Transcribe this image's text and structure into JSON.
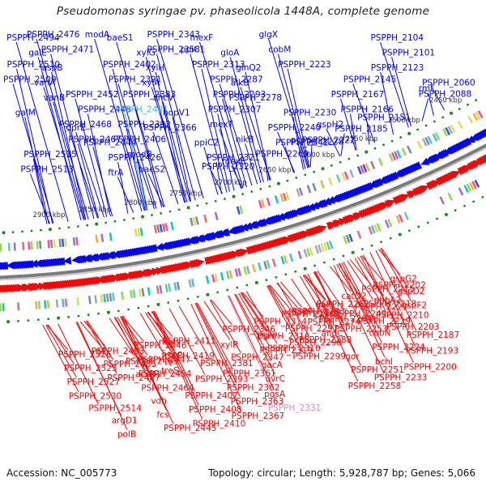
{
  "title": "Pseudomonas syringae pv. phaseolicola 1448A, complete genome",
  "footer": {
    "accession": "Accession: NC_005773",
    "stats": "Topology: circular; Length: 5,928,787 bp; Genes: 5,066"
  },
  "colors": {
    "forward_strand": "#0000ff",
    "reverse_strand": "#ff0000",
    "backbone": "#808080",
    "highlight_forward": "#33bbee",
    "highlight_reverse": "#ee88cc",
    "tick": "#1a8a1a"
  },
  "scale": {
    "unit": "kbp",
    "ticks_kbp": [
      2450,
      2500,
      2550,
      2600,
      2650,
      2700,
      2750,
      2800,
      2850,
      2900
    ]
  },
  "forward_labels": [
    {
      "text": "PSPPH_2476",
      "kbp": 2858
    },
    {
      "text": "PSPPH_2471",
      "kbp": 2852
    },
    {
      "text": "PSPPH_2510",
      "kbp": 2897
    },
    {
      "text": "PSPPH_2509",
      "kbp": 2896
    },
    {
      "text": "PSPPH_2452",
      "kbp": 2838
    },
    {
      "text": "PSPPH_2448",
      "kbp": 2834
    },
    {
      "text": "PSPPH_2468",
      "kbp": 2848
    },
    {
      "text": "PSPPH_2467",
      "kbp": 2847
    },
    {
      "text": "PSPPH_2515",
      "kbp": 2903
    },
    {
      "text": "PSPPH_2513",
      "kbp": 2900
    },
    {
      "text": "PSPPH_2494",
      "kbp": 2880
    },
    {
      "text": "galE",
      "kbp": 2866
    },
    {
      "text": "aspB",
      "kbp": 2861
    },
    {
      "text": "vanA",
      "kbp": 2863
    },
    {
      "text": "vanB",
      "kbp": 2862
    },
    {
      "text": "galM",
      "kbp": 2901
    },
    {
      "text": "oprE",
      "kbp": 2841
    },
    {
      "text": "PSPPH_2444",
      "kbp": 2832
    },
    {
      "text": "PSPPH_2426",
      "kbp": 2815
    },
    {
      "text": "ftrA",
      "kbp": 2809
    },
    {
      "text": "modA",
      "kbp": 2797
    },
    {
      "text": "PSPPH_2358",
      "kbp": 2741
    },
    {
      "text": "PSPPH_2402",
      "kbp": 2796
    },
    {
      "text": "PSPPH_2391",
      "kbp": 2784
    },
    {
      "text": "PSPPH_2383",
      "kbp": 2778
    },
    {
      "text": "PSPPH_2401",
      "kbp": 2795,
      "highlight": true
    },
    {
      "text": "PSPPH_2392",
      "kbp": 2786
    },
    {
      "text": "PSPPH_2406",
      "kbp": 2800
    },
    {
      "text": "modB",
      "kbp": 2794
    },
    {
      "text": "baeS2",
      "kbp": 2776
    },
    {
      "text": "baeS1",
      "kbp": 2775
    },
    {
      "text": "xylG",
      "kbp": 2753
    },
    {
      "text": "xylH",
      "kbp": 2752
    },
    {
      "text": "xylA",
      "kbp": 2750
    },
    {
      "text": "shcV",
      "kbp": 2747
    },
    {
      "text": "hopV1",
      "kbp": 2746
    },
    {
      "text": "PSPPH_2366",
      "kbp": 2760
    },
    {
      "text": "ppiC2",
      "kbp": 2716
    },
    {
      "text": "PSPPH_2321",
      "kbp": 2712
    },
    {
      "text": "PSPPH_2320",
      "kbp": 2711
    },
    {
      "text": "PSPPH_2343",
      "kbp": 2732
    },
    {
      "text": "ppiC1",
      "kbp": 2706
    },
    {
      "text": "PSPPH_2313",
      "kbp": 2703
    },
    {
      "text": "PSPPH_2287",
      "kbp": 2678
    },
    {
      "text": "PSPPH_2293",
      "kbp": 2684
    },
    {
      "text": "PSPPH_2307",
      "kbp": 2698
    },
    {
      "text": "mexT",
      "kbp": 2690
    },
    {
      "text": "nikB",
      "kbp": 2672
    },
    {
      "text": "PSPPH_2269",
      "kbp": 2660
    },
    {
      "text": "mexE",
      "kbp": 2689
    },
    {
      "text": "mexF",
      "kbp": 2688
    },
    {
      "text": "gloA",
      "kbp": 2665
    },
    {
      "text": "glnQ2",
      "kbp": 2658
    },
    {
      "text": "alkB",
      "kbp": 2657
    },
    {
      "text": "PSPPH_2278",
      "kbp": 2668
    },
    {
      "text": "PSPPH_2230",
      "kbp": 2620
    },
    {
      "text": "PSPPH_2240",
      "kbp": 2630
    },
    {
      "text": "PSPPH_2241",
      "kbp": 2631
    },
    {
      "text": "PSPPH_2222",
      "kbp": 2612
    },
    {
      "text": "PSPPH_2228",
      "kbp": 2618
    },
    {
      "text": "glgX",
      "kbp": 2615
    },
    {
      "text": "cobM",
      "kbp": 2614
    },
    {
      "text": "PSPPH_2223",
      "kbp": 2613
    },
    {
      "text": "PSPPH_2145",
      "kbp": 2538
    },
    {
      "text": "PSPPH_2167",
      "kbp": 2560
    },
    {
      "text": "PSPPH_2166",
      "kbp": 2559
    },
    {
      "text": "gspH2",
      "kbp": 2578
    },
    {
      "text": "PSPPH_2151",
      "kbp": 2544
    },
    {
      "text": "PSPPH_2185",
      "kbp": 2577
    },
    {
      "text": "PSPPH_2088",
      "kbp": 2482
    },
    {
      "text": "PSPPH_2104",
      "kbp": 2498
    },
    {
      "text": "PSPPH_2101",
      "kbp": 2495
    },
    {
      "text": "PSPPH_2123",
      "kbp": 2516
    },
    {
      "text": "PSPPH_2060",
      "kbp": 2455
    },
    {
      "text": "rmf",
      "kbp": 2468
    }
  ],
  "reverse_labels": [
    {
      "text": "PSPPH_2526",
      "kbp": 2912
    },
    {
      "text": "PSPPH_2525",
      "kbp": 2911
    },
    {
      "text": "PSPPH_2527",
      "kbp": 2913
    },
    {
      "text": "PSPPH_2530",
      "kbp": 2916
    },
    {
      "text": "PSPPH_2514",
      "kbp": 2901
    },
    {
      "text": "argD1",
      "kbp": 2883
    },
    {
      "text": "polB",
      "kbp": 2882
    },
    {
      "text": "glf",
      "kbp": 2875
    },
    {
      "text": "PSPPH_2485",
      "kbp": 2872
    },
    {
      "text": "PSPPH_2487",
      "kbp": 2873
    },
    {
      "text": "PSPPH_2493",
      "kbp": 2879
    },
    {
      "text": "PSPPH_2469",
      "kbp": 2850
    },
    {
      "text": "accB1",
      "kbp": 2845
    },
    {
      "text": "PSPPH_2464",
      "kbp": 2844
    },
    {
      "text": "vdh",
      "kbp": 2839
    },
    {
      "text": "fcs",
      "kbp": 2838
    },
    {
      "text": "PSPPH_2445",
      "kbp": 2836
    },
    {
      "text": "PSPPH_2446",
      "kbp": 2837
    },
    {
      "text": "PSPPH_2447",
      "kbp": 2838
    },
    {
      "text": "PSPPH_2454",
      "kbp": 2842
    },
    {
      "text": "mets",
      "kbp": 2812
    },
    {
      "text": "rhtC",
      "kbp": 2811
    },
    {
      "text": "PSPPH_2381",
      "kbp": 2780
    },
    {
      "text": "PSPPH_2393",
      "kbp": 2790
    },
    {
      "text": "PSPPH_2407",
      "kbp": 2805
    },
    {
      "text": "PSPPH_2408",
      "kbp": 2806
    },
    {
      "text": "PSPPH_2410",
      "kbp": 2807
    },
    {
      "text": "PSPPH_2411",
      "kbp": 2808
    },
    {
      "text": "PSPPH_2419",
      "kbp": 2814
    },
    {
      "text": "treS",
      "kbp": 2819
    },
    {
      "text": "PSPPH_2346",
      "kbp": 2748
    },
    {
      "text": "xylR",
      "kbp": 2755
    },
    {
      "text": "PSPPH_2347",
      "kbp": 2749
    },
    {
      "text": "PSPPH_2361",
      "kbp": 2762
    },
    {
      "text": "PSPPH_2362",
      "kbp": 2763
    },
    {
      "text": "PSPPH_2363",
      "kbp": 2764
    },
    {
      "text": "PSPPH_2367",
      "kbp": 2768
    },
    {
      "text": "PSPPH_2296",
      "kbp": 2688
    },
    {
      "text": "PSPPH_2316",
      "kbp": 2718
    },
    {
      "text": "PSPPH_2310",
      "kbp": 2712
    },
    {
      "text": "PSPPH_2314",
      "kbp": 2716
    },
    {
      "text": "pgm",
      "kbp": 2717
    },
    {
      "text": "PSPPH_2319",
      "kbp": 2720
    },
    {
      "text": "gacA",
      "kbp": 2723
    },
    {
      "text": "uvrC",
      "kbp": 2724
    },
    {
      "text": "pgsA",
      "kbp": 2730
    },
    {
      "text": "PSPPH_2331",
      "kbp": 2731,
      "highlight": true
    },
    {
      "text": "PSPPH_2283",
      "kbp": 2677
    },
    {
      "text": "PSPPH_2274",
      "kbp": 2666
    },
    {
      "text": "PSPPH_2288",
      "kbp": 2680
    },
    {
      "text": "PSPPH_2289",
      "kbp": 2681
    },
    {
      "text": "PSPPH_2297",
      "kbp": 2689
    },
    {
      "text": "PSPPH_2298",
      "kbp": 2690
    },
    {
      "text": "PSPPH_2299",
      "kbp": 2691
    },
    {
      "text": "gor",
      "kbp": 2642
    },
    {
      "text": "PSPPH_2251",
      "kbp": 2641
    },
    {
      "text": "PSPPH_2258",
      "kbp": 2649
    },
    {
      "text": "galU",
      "kbp": 2653
    },
    {
      "text": "PSPPH_2249",
      "kbp": 2639
    },
    {
      "text": "PSPPH_2253",
      "kbp": 2643
    },
    {
      "text": "PSPPH_2262",
      "kbp": 2652
    },
    {
      "text": "PSPPH_2264",
      "kbp": 2654
    },
    {
      "text": "ahpC",
      "kbp": 2657
    },
    {
      "text": "cobN",
      "kbp": 2612
    },
    {
      "text": "PSPPH_2224",
      "kbp": 2614
    },
    {
      "text": "bchl",
      "kbp": 2616
    },
    {
      "text": "PSPPH_2233",
      "kbp": 2622
    },
    {
      "text": "catD2",
      "kbp": 2626
    },
    {
      "text": "PSPPH_2227",
      "kbp": 2617
    },
    {
      "text": "PSPPH_2229",
      "kbp": 2619
    },
    {
      "text": "gspG2",
      "kbp": 2575
    },
    {
      "text": "gspD2",
      "kbp": 2572
    },
    {
      "text": "gspF2",
      "kbp": 2573
    },
    {
      "text": "PSPPH_2203",
      "kbp": 2594
    },
    {
      "text": "PSPPH_2187",
      "kbp": 2578
    },
    {
      "text": "PSPPH_2193",
      "kbp": 2584
    },
    {
      "text": "PSPPH_2200",
      "kbp": 2591
    },
    {
      "text": "PSPPH_2202",
      "kbp": 2593
    },
    {
      "text": "phbA2",
      "kbp": 2597
    },
    {
      "text": "PSPPH_2210",
      "kbp": 2600
    },
    {
      "text": "PSPPH_2215",
      "kbp": 2605
    },
    {
      "text": "PSPPH_2218",
      "kbp": 2608
    }
  ]
}
